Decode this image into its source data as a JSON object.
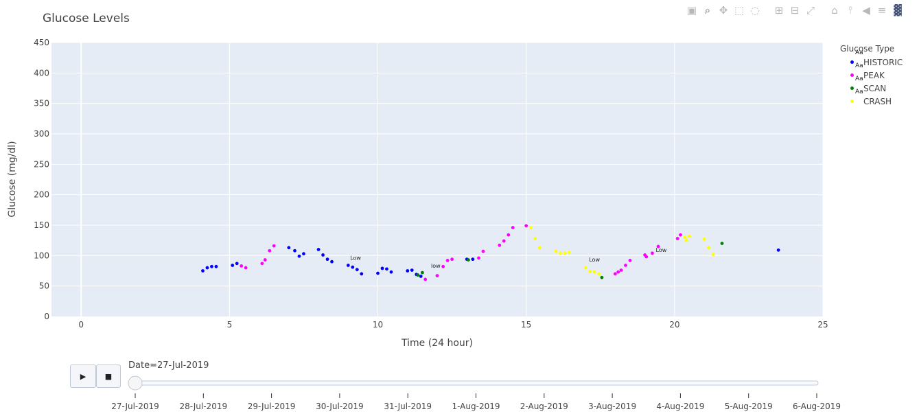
{
  "chart_data": {
    "type": "scatter",
    "title": "Glucose Levels",
    "xlabel": "Time (24 hour)",
    "ylabel": "Glucose (mg/dl)",
    "xlim": [
      -1,
      25
    ],
    "ylim": [
      0,
      450
    ],
    "xticks": [
      0,
      5,
      10,
      15,
      20,
      25
    ],
    "yticks": [
      0,
      50,
      100,
      150,
      200,
      250,
      300,
      350,
      400,
      450
    ],
    "grid": true,
    "legend_title": "Glucose Type",
    "legend_placement": "top-right",
    "series": [
      {
        "name": "HISTORIC",
        "color": "#0000ff",
        "points": [
          [
            4.1,
            75
          ],
          [
            4.25,
            80
          ],
          [
            4.4,
            82
          ],
          [
            4.55,
            82
          ],
          [
            5.1,
            84
          ],
          [
            5.25,
            87
          ],
          [
            7.0,
            113
          ],
          [
            7.2,
            108
          ],
          [
            7.35,
            99
          ],
          [
            7.5,
            103
          ],
          [
            8.0,
            110
          ],
          [
            8.15,
            101
          ],
          [
            8.3,
            94
          ],
          [
            8.45,
            90
          ],
          [
            9.0,
            84
          ],
          [
            9.15,
            81
          ],
          [
            9.3,
            77
          ],
          [
            9.45,
            70
          ],
          [
            10.0,
            71
          ],
          [
            10.15,
            79
          ],
          [
            10.3,
            78
          ],
          [
            10.45,
            73
          ],
          [
            11.0,
            75
          ],
          [
            11.15,
            76
          ],
          [
            11.3,
            69
          ],
          [
            11.45,
            66
          ],
          [
            13.0,
            94
          ],
          [
            13.2,
            94
          ],
          [
            23.5,
            109
          ]
        ]
      },
      {
        "name": "PEAK",
        "color": "#ff00ff",
        "points": [
          [
            5.4,
            83
          ],
          [
            5.55,
            80
          ],
          [
            6.1,
            87
          ],
          [
            6.2,
            93
          ],
          [
            6.35,
            108
          ],
          [
            6.5,
            116
          ],
          [
            11.6,
            61
          ],
          [
            12.0,
            67
          ],
          [
            12.2,
            82
          ],
          [
            12.35,
            92
          ],
          [
            12.5,
            94
          ],
          [
            13.4,
            96
          ],
          [
            13.55,
            107
          ],
          [
            14.1,
            117
          ],
          [
            14.25,
            124
          ],
          [
            14.4,
            134
          ],
          [
            14.55,
            146
          ],
          [
            15.0,
            149
          ],
          [
            18.0,
            70
          ],
          [
            18.1,
            73
          ],
          [
            18.2,
            76
          ],
          [
            18.35,
            84
          ],
          [
            18.5,
            92
          ],
          [
            19.0,
            101
          ],
          [
            19.05,
            98
          ],
          [
            19.25,
            104
          ],
          [
            19.45,
            115
          ],
          [
            20.1,
            128
          ],
          [
            20.2,
            134
          ]
        ]
      },
      {
        "name": "SCAN",
        "color": "#008000",
        "points": [
          [
            11.35,
            68
          ],
          [
            11.5,
            72
          ],
          [
            13.05,
            93
          ],
          [
            17.55,
            64
          ],
          [
            21.6,
            120
          ]
        ]
      },
      {
        "name": "CRASH",
        "color": "#ffff00",
        "points": [
          [
            15.15,
            146
          ],
          [
            15.3,
            128
          ],
          [
            15.45,
            113
          ],
          [
            16.0,
            107
          ],
          [
            16.15,
            104
          ],
          [
            16.3,
            104
          ],
          [
            16.45,
            105
          ],
          [
            17.0,
            80
          ],
          [
            17.15,
            74
          ],
          [
            17.3,
            73
          ],
          [
            17.45,
            70
          ],
          [
            20.35,
            130
          ],
          [
            20.4,
            125
          ],
          [
            20.5,
            132
          ],
          [
            21.0,
            127
          ],
          [
            21.15,
            113
          ],
          [
            21.3,
            102
          ]
        ]
      }
    ],
    "annotations": [
      {
        "text": "Low",
        "x": 9.25,
        "y": 93
      },
      {
        "text": "low",
        "x": 11.95,
        "y": 80
      },
      {
        "text": "Low",
        "x": 17.3,
        "y": 90
      },
      {
        "text": "Low",
        "x": 19.55,
        "y": 106
      }
    ],
    "slider": {
      "label": "Date=27-Jul-2019",
      "steps": [
        "27-Jul-2019",
        "28-Jul-2019",
        "29-Jul-2019",
        "30-Jul-2019",
        "31-Jul-2019",
        "1-Aug-2019",
        "2-Aug-2019",
        "3-Aug-2019",
        "4-Aug-2019",
        "5-Aug-2019",
        "6-Aug-2019"
      ],
      "active_index": 0
    }
  },
  "modebar": [
    "camera-icon",
    "zoom-icon",
    "pan-icon",
    "box-select-icon",
    "lasso-icon",
    "zoom-in-icon",
    "zoom-out-icon",
    "autoscale-icon",
    "reset-axes-icon",
    "spike-lines-icon",
    "hover-closest-icon",
    "hover-compare-icon",
    "plotly-logo-icon"
  ],
  "controls": {
    "play_icon": "▶",
    "stop_icon": "■"
  },
  "legend_sample": "Aa"
}
